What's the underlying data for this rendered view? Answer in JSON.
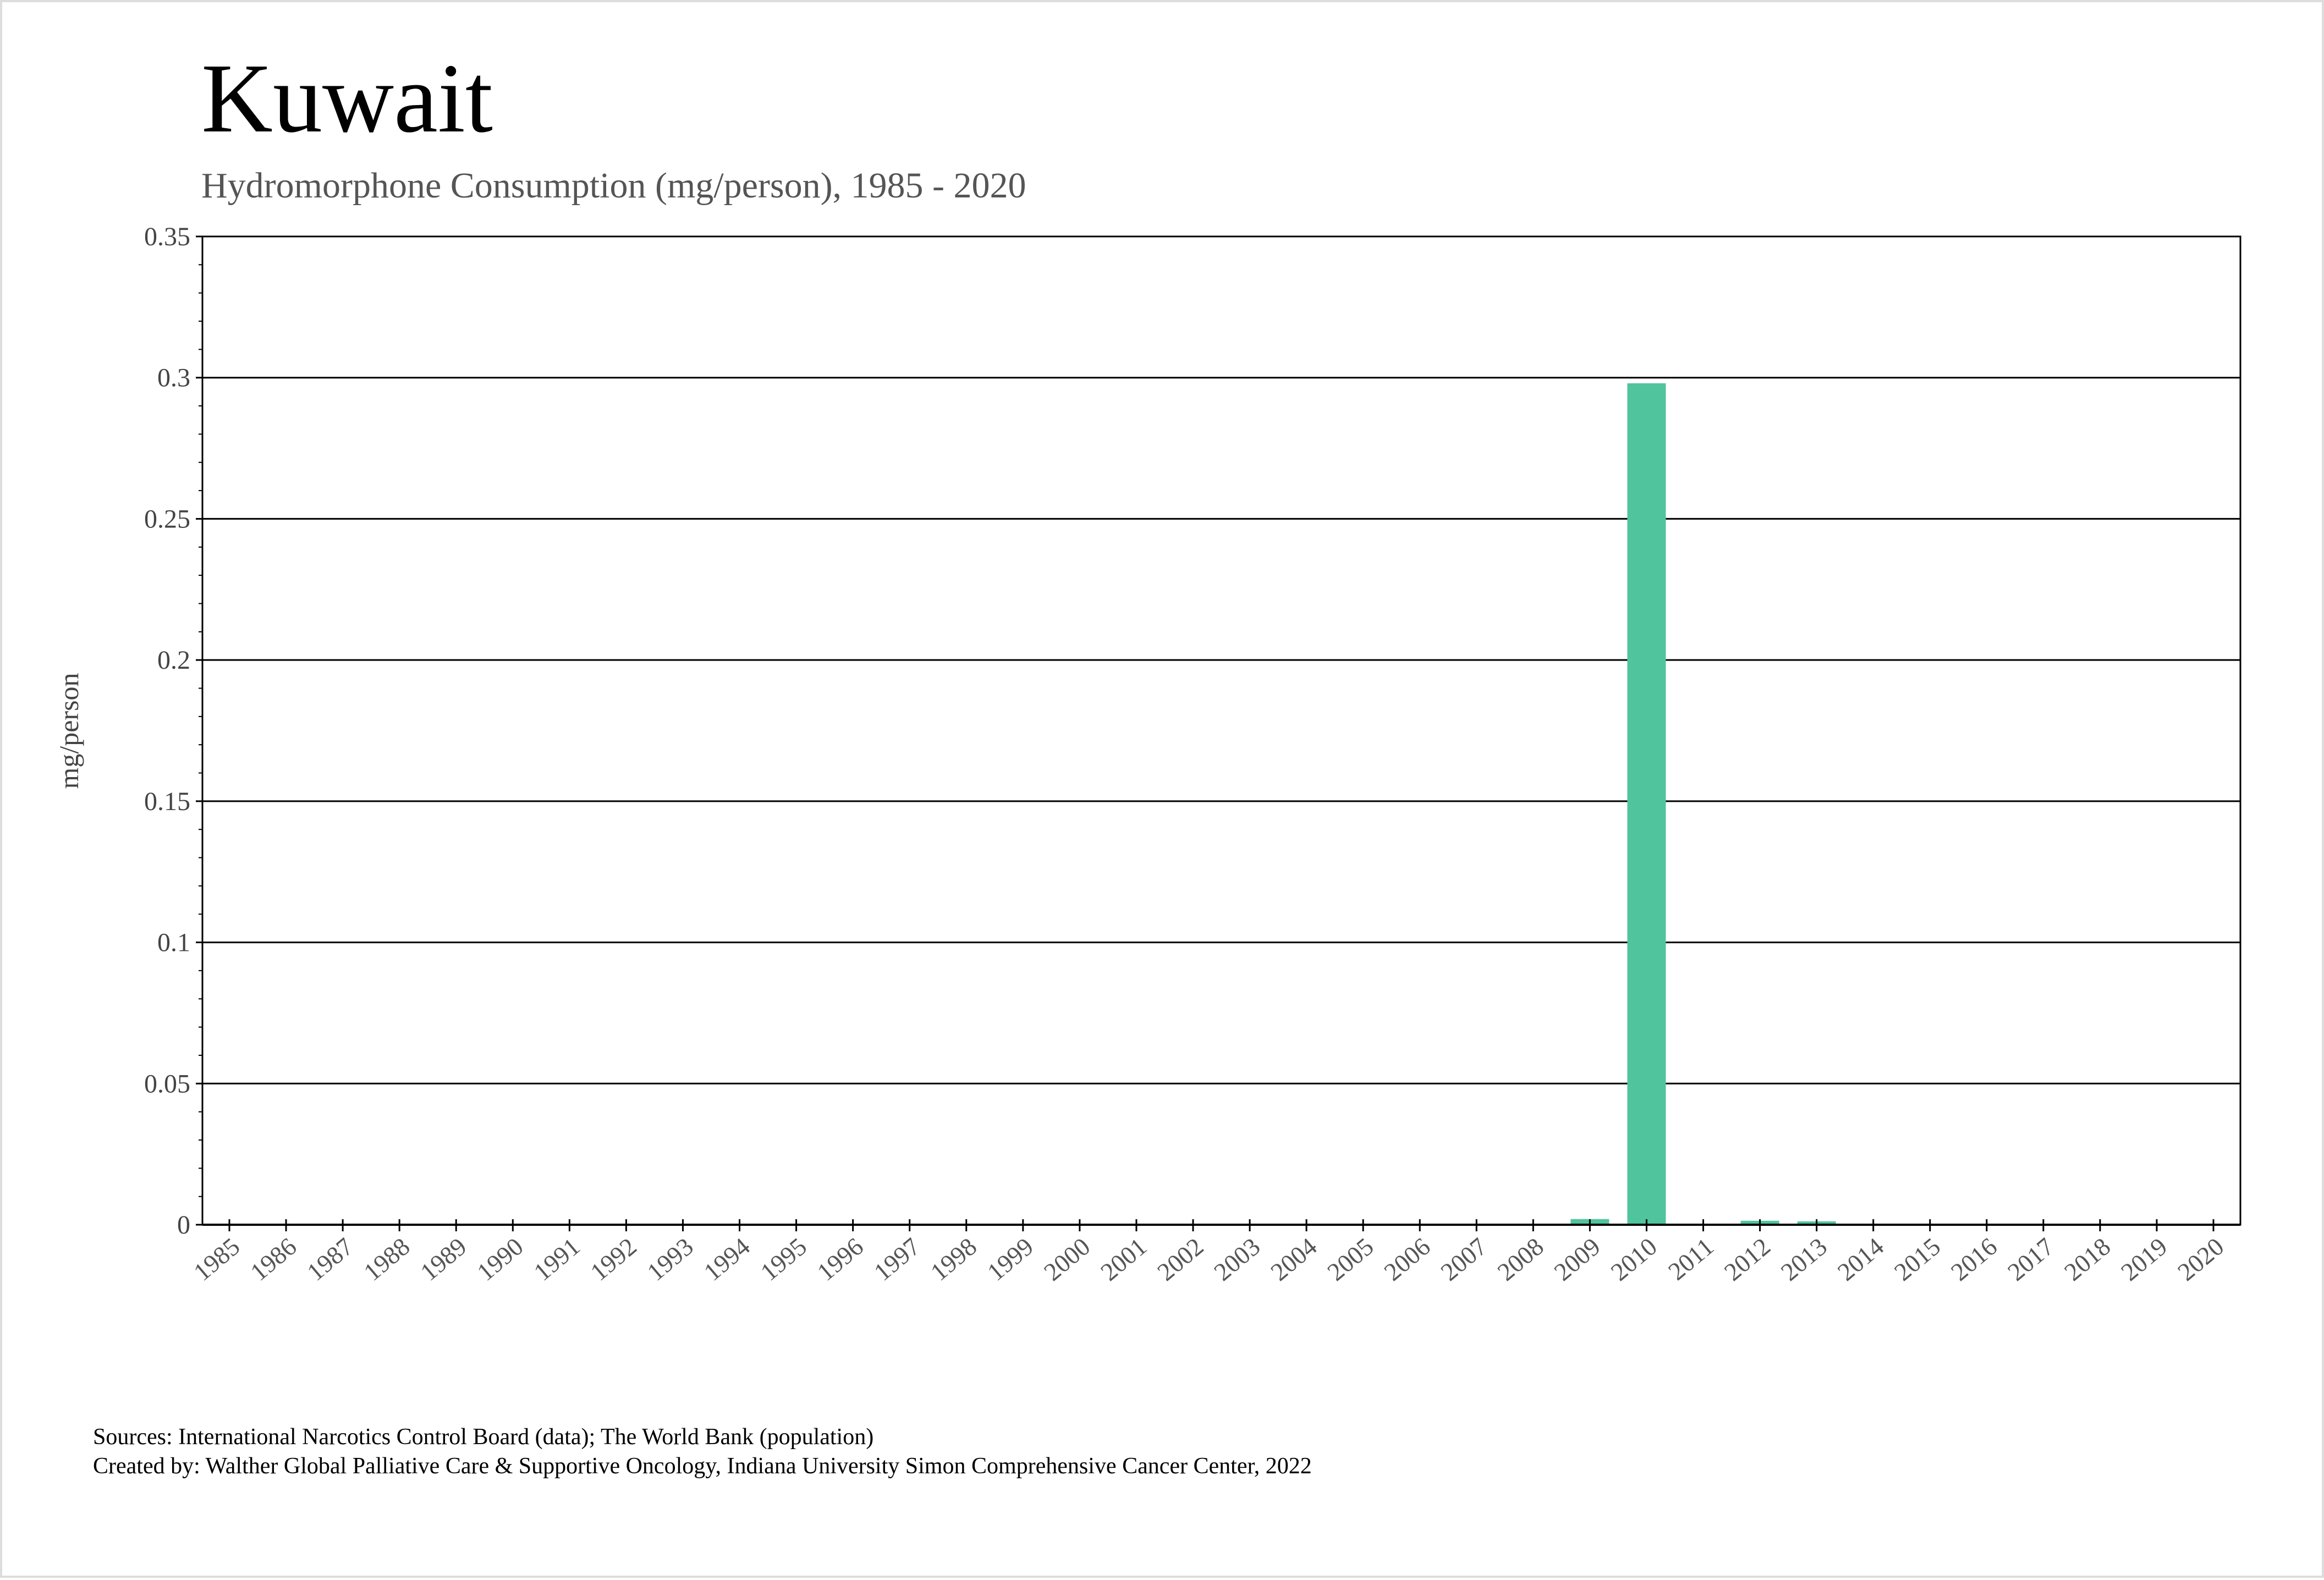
{
  "chart_data": {
    "type": "bar",
    "title": "Kuwait",
    "subtitle": "Hydromorphone Consumption (mg/person), 1985 - 2020",
    "xlabel": "",
    "ylabel": "mg/person",
    "ylim": [
      0,
      0.35
    ],
    "yticks": [
      "0",
      "0.05",
      "0.1",
      "0.15",
      "0.2",
      "0.25",
      "0.3",
      "0.35"
    ],
    "grid": true,
    "categories": [
      "1985",
      "1986",
      "1987",
      "1988",
      "1989",
      "1990",
      "1991",
      "1992",
      "1993",
      "1994",
      "1995",
      "1996",
      "1997",
      "1998",
      "1999",
      "2000",
      "2001",
      "2002",
      "2003",
      "2004",
      "2005",
      "2006",
      "2007",
      "2008",
      "2009",
      "2010",
      "2011",
      "2012",
      "2013",
      "2014",
      "2015",
      "2016",
      "2017",
      "2018",
      "2019",
      "2020"
    ],
    "values": [
      0,
      0,
      0,
      0,
      0,
      0,
      0,
      0,
      0,
      0,
      0,
      0,
      0,
      0,
      0,
      0,
      0,
      0,
      0,
      0,
      0,
      0,
      0,
      0,
      0.002,
      0.298,
      0,
      0.0014,
      0.0012,
      0,
      0,
      0,
      0,
      0,
      0,
      0
    ],
    "bar_color": "#50c49c"
  },
  "footer": {
    "sources": "Sources: International Narcotics Control Board (data); The World Bank (population)",
    "created_by": "Created by: Walther Global Palliative Care & Supportive Oncology, Indiana University Simon Comprehensive Cancer Center, 2022"
  }
}
